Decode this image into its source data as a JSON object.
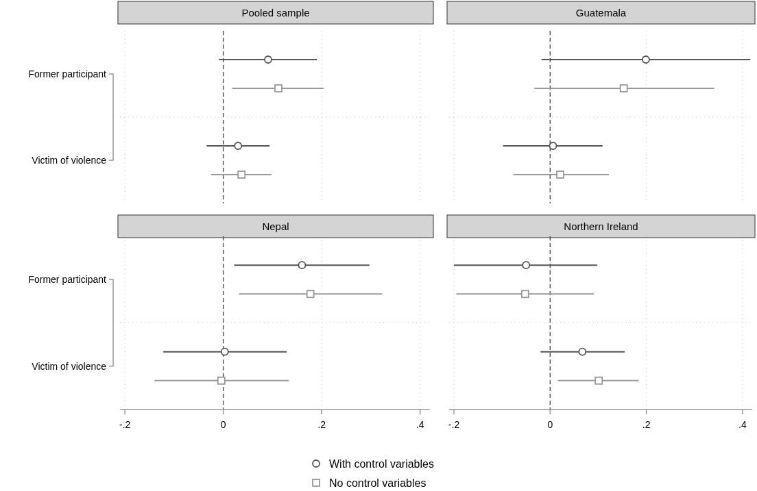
{
  "chart_data": [
    {
      "type": "scatter",
      "title": "Pooled sample",
      "orientation": "horizontal",
      "categories": [
        "Former participant",
        "Victim of violence"
      ],
      "xlim": [
        -0.21,
        0.42
      ],
      "xticks": [
        {
          "value": -0.2,
          "label": null
        },
        {
          "value": 0,
          "label": null
        },
        {
          "value": 0.2,
          "label": null
        },
        {
          "value": 0.4,
          "label": null
        }
      ],
      "grid": true,
      "tick_labels": "y",
      "ref_lines": [
        {
          "axis": "x",
          "value": 0,
          "line_style": "dashed",
          "color": "#555555"
        }
      ],
      "series": [
        {
          "color": "#555555",
          "marker": "circle",
          "values": [
            0.091,
            0.03
          ],
          "errors": [
            [
              -0.009,
              0.19
            ],
            [
              -0.034,
              0.094
            ]
          ]
        },
        {
          "color": "#999999",
          "marker": "square",
          "values": [
            0.112,
            0.037
          ],
          "errors": [
            [
              0.018,
              0.204
            ],
            [
              -0.025,
              0.098
            ]
          ]
        }
      ]
    },
    {
      "type": "scatter",
      "title": "Guatemala",
      "orientation": "horizontal",
      "categories": [
        null,
        null
      ],
      "xlim": [
        -0.21,
        0.42
      ],
      "xticks": [
        {
          "value": -0.2,
          "label": null
        },
        {
          "value": 0,
          "label": null
        },
        {
          "value": 0.2,
          "label": null
        },
        {
          "value": 0.4,
          "label": null
        }
      ],
      "grid": true,
      "tick_labels": false,
      "ref_lines": [
        {
          "axis": "x",
          "value": 0,
          "line_style": "dashed",
          "color": "#555555"
        }
      ],
      "series": [
        {
          "color": "#555555",
          "marker": "circle",
          "values": [
            0.199,
            0.006
          ],
          "errors": [
            [
              -0.018,
              0.416
            ],
            [
              -0.098,
              0.109
            ]
          ]
        },
        {
          "color": "#999999",
          "marker": "square",
          "values": [
            0.153,
            0.021
          ],
          "errors": [
            [
              -0.033,
              0.341
            ],
            [
              -0.077,
              0.122
            ]
          ]
        }
      ]
    },
    {
      "type": "scatter",
      "title": "Nepal",
      "orientation": "horizontal",
      "categories": [
        "Former participant",
        "Victim of violence"
      ],
      "xlim": [
        -0.21,
        0.42
      ],
      "xticks": [
        {
          "value": -0.2,
          "label": "-.2"
        },
        0,
        {
          "value": 0.2,
          "label": ".2"
        },
        {
          "value": 0.4,
          "label": ".4"
        }
      ],
      "grid": true,
      "ref_lines": [
        {
          "axis": "x",
          "value": 0,
          "line_style": "dashed",
          "color": "#555555"
        }
      ],
      "series": [
        {
          "color": "#555555",
          "marker": "circle",
          "values": [
            0.16,
            0.003
          ],
          "errors": [
            [
              0.022,
              0.297
            ],
            [
              -0.122,
              0.129
            ]
          ]
        },
        {
          "color": "#999999",
          "marker": "square",
          "values": [
            0.177,
            -0.004
          ],
          "errors": [
            [
              0.032,
              0.323
            ],
            [
              -0.14,
              0.133
            ]
          ]
        }
      ]
    },
    {
      "type": "scatter",
      "title": "Northern Ireland",
      "orientation": "horizontal",
      "categories": [
        null,
        null
      ],
      "xlim": [
        -0.21,
        0.42
      ],
      "xticks": [
        {
          "value": -0.2,
          "label": "-.2"
        },
        0,
        {
          "value": 0.2,
          "label": ".2"
        },
        {
          "value": 0.4,
          "label": ".4"
        }
      ],
      "grid": true,
      "tick_labels": "x",
      "legend": "bottom",
      "ref_lines": [
        {
          "axis": "x",
          "value": 0,
          "line_style": "dashed",
          "color": "#555555"
        }
      ],
      "series": [
        {
          "name": "With control variables",
          "color": "#555555",
          "marker": "circle",
          "values": [
            -0.05,
            0.067
          ],
          "errors": [
            [
              -0.2,
              0.098
            ],
            [
              -0.02,
              0.155
            ]
          ]
        },
        {
          "name": "No control variables",
          "color": "#999999",
          "marker": "square",
          "values": [
            -0.052,
            0.101
          ],
          "errors": [
            [
              -0.195,
              0.091
            ],
            [
              0.016,
              0.184
            ]
          ]
        }
      ]
    }
  ]
}
